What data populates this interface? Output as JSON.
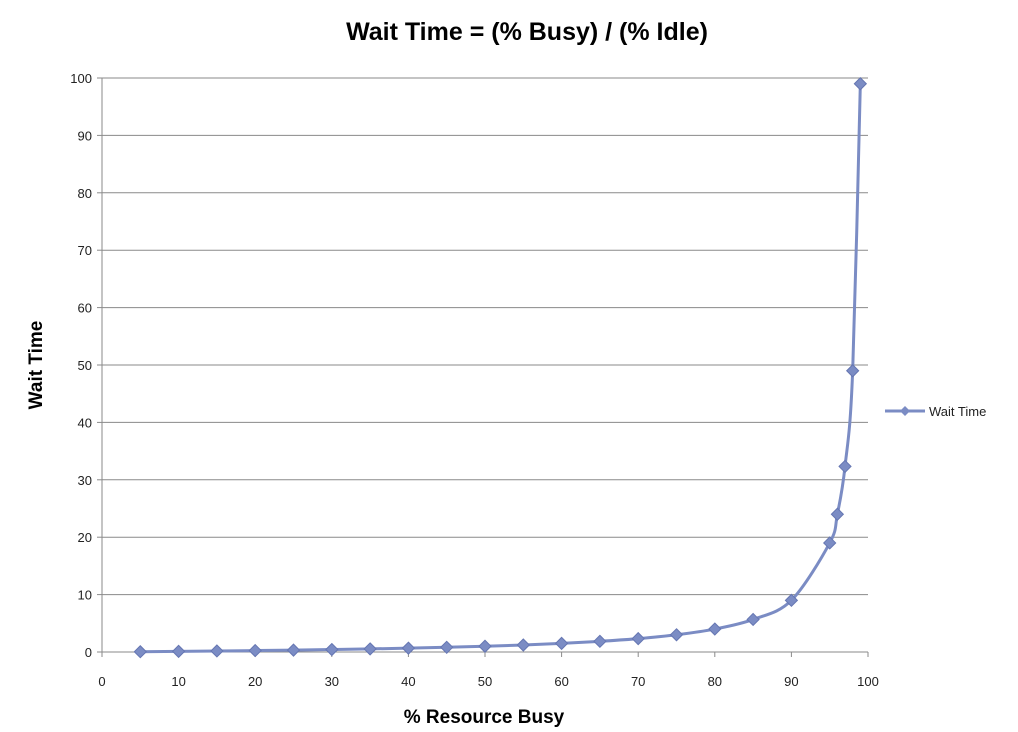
{
  "chart_data": {
    "type": "scatter",
    "title": "Wait Time = (% Busy) / (% Idle)",
    "xlabel": "% Resource Busy",
    "ylabel": "Wait Time",
    "xlim": [
      0,
      100
    ],
    "ylim": [
      0,
      100
    ],
    "x_ticks": [
      "0",
      "10",
      "20",
      "30",
      "40",
      "50",
      "60",
      "70",
      "80",
      "90",
      "100"
    ],
    "y_ticks": [
      "0",
      "10",
      "20",
      "30",
      "40",
      "50",
      "60",
      "70",
      "80",
      "90",
      "100"
    ],
    "grid": "horizontal",
    "legend_position": "right",
    "marker": "diamond",
    "line": "smooth",
    "series": [
      {
        "name": "Wait Time",
        "color": "#7b8cc4",
        "x": [
          5,
          10,
          15,
          20,
          25,
          30,
          35,
          40,
          45,
          50,
          55,
          60,
          65,
          70,
          75,
          80,
          85,
          90,
          95,
          96,
          97,
          98,
          99
        ],
        "y": [
          0.05,
          0.11,
          0.18,
          0.25,
          0.33,
          0.43,
          0.54,
          0.67,
          0.82,
          1,
          1.22,
          1.5,
          1.86,
          2.33,
          3,
          4,
          5.67,
          9,
          19,
          24,
          32.33,
          49,
          99
        ]
      }
    ]
  }
}
